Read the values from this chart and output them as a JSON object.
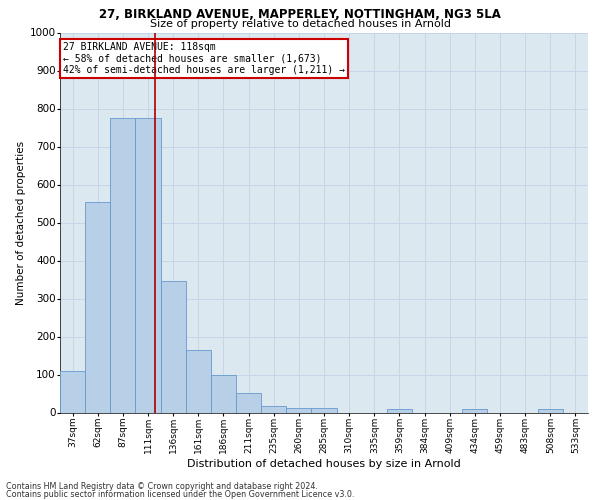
{
  "title1": "27, BIRKLAND AVENUE, MAPPERLEY, NOTTINGHAM, NG3 5LA",
  "title2": "Size of property relative to detached houses in Arnold",
  "xlabel": "Distribution of detached houses by size in Arnold",
  "ylabel": "Number of detached properties",
  "bar_labels": [
    "37sqm",
    "62sqm",
    "87sqm",
    "111sqm",
    "136sqm",
    "161sqm",
    "186sqm",
    "211sqm",
    "235sqm",
    "260sqm",
    "285sqm",
    "310sqm",
    "335sqm",
    "359sqm",
    "384sqm",
    "409sqm",
    "434sqm",
    "459sqm",
    "483sqm",
    "508sqm",
    "533sqm"
  ],
  "bar_values": [
    110,
    555,
    775,
    775,
    345,
    165,
    98,
    52,
    18,
    13,
    13,
    0,
    0,
    10,
    0,
    0,
    10,
    0,
    0,
    10,
    0
  ],
  "bar_color": "#b8cfe8",
  "bar_edge_color": "#6699cc",
  "ylim": [
    0,
    1000
  ],
  "yticks": [
    0,
    100,
    200,
    300,
    400,
    500,
    600,
    700,
    800,
    900,
    1000
  ],
  "red_line_x": 3.28,
  "annotation_title": "27 BIRKLAND AVENUE: 118sqm",
  "annotation_line1": "← 58% of detached houses are smaller (1,673)",
  "annotation_line2": "42% of semi-detached houses are larger (1,211) →",
  "annotation_box_color": "#ffffff",
  "annotation_box_edge": "#cc0000",
  "red_line_color": "#aa0000",
  "grid_color": "#c8d4e8",
  "background_color": "#dce8f0",
  "footer1": "Contains HM Land Registry data © Crown copyright and database right 2024.",
  "footer2": "Contains public sector information licensed under the Open Government Licence v3.0."
}
